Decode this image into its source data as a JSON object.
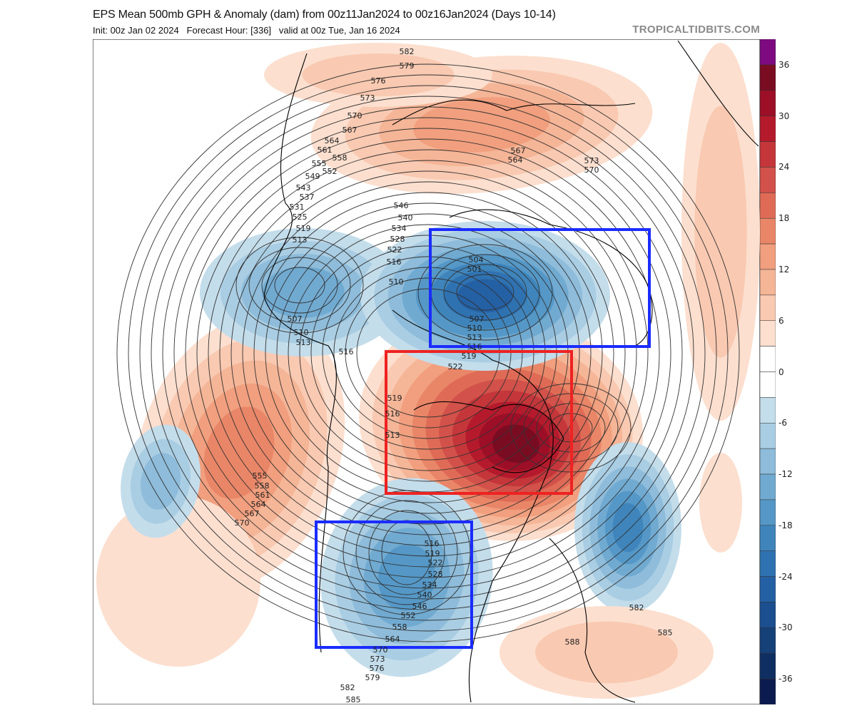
{
  "header": {
    "title": "EPS Mean 500mb GPH & Anomaly (dam) from 00z11Jan2024 to 00z16Jan2024 (Days 10-14)",
    "subtitle": "Init: 00z Jan 02 2024   Forecast Hour: [336]   valid at 00z Tue, Jan 16 2024",
    "brand": "TROPICALTIDBITS.COM"
  },
  "colorbar": {
    "labels": [
      "36",
      "30",
      "24",
      "18",
      "12",
      "6",
      "0",
      "-6",
      "-12",
      "-18",
      "-24",
      "-30",
      "-36"
    ],
    "range": [
      -39,
      39
    ],
    "step": 3,
    "colors": [
      "#7d0a80",
      "#7a0c22",
      "#9c0f27",
      "#b51a2c",
      "#c4363a",
      "#d2514a",
      "#df6b56",
      "#e98668",
      "#f19f7e",
      "#f5b597",
      "#f9c9b1",
      "#fcdfcf",
      "#ffffff",
      "#ffffff",
      "#c4ddeb",
      "#a9cde3",
      "#8ebcda",
      "#71aad1",
      "#5598c7",
      "#3f85bc",
      "#2f72b1",
      "#2460a4",
      "#1b4f90",
      "#154078",
      "#0f2f63",
      "#0b1b50"
    ]
  },
  "map": {
    "land_color": "#ffffff",
    "coast_color": "#000000",
    "box_colors": {
      "blue": "#1a2cff",
      "red": "#ee2222"
    },
    "contour_labels": [
      "582",
      "579",
      "576",
      "573",
      "570",
      "567",
      "564",
      "561",
      "558",
      "555",
      "552",
      "549",
      "543",
      "537",
      "531",
      "525",
      "519",
      "513",
      "546",
      "540",
      "534",
      "528",
      "522",
      "516",
      "510",
      "507",
      "510",
      "513",
      "516",
      "504",
      "501",
      "507",
      "510",
      "513",
      "516",
      "519",
      "522",
      "519",
      "516",
      "513",
      "567",
      "564",
      "573",
      "570",
      "555",
      "558",
      "561",
      "564",
      "567",
      "570",
      "516",
      "519",
      "522",
      "528",
      "534",
      "540",
      "546",
      "552",
      "558",
      "564",
      "570",
      "573",
      "576",
      "579",
      "582",
      "585",
      "582",
      "585",
      "588"
    ]
  }
}
